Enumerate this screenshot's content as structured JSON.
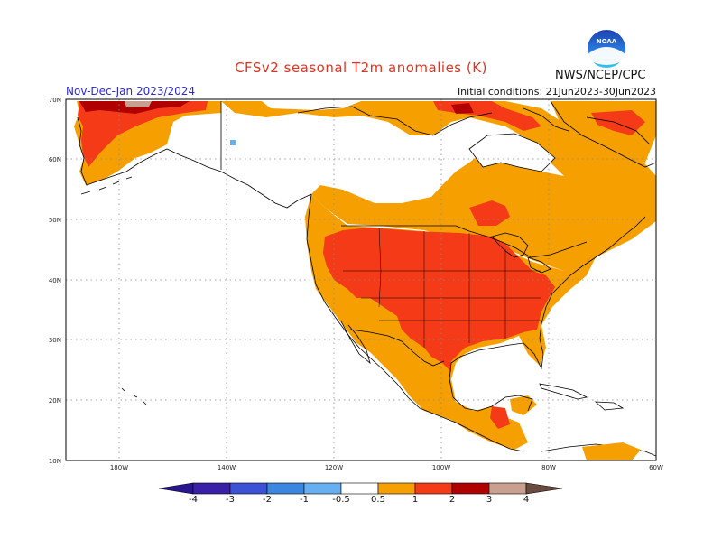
{
  "title": "CFSv2 seasonal T2m anomalies (K)",
  "season": "Nov-Dec-Jan 2023/2024",
  "initial_conditions": "Initial conditions: 21Jun2023-30Jun2023",
  "agency": "NWS/NCEP/CPC",
  "logo_text": "NOAA",
  "lat_labels": [
    "70N",
    "60N",
    "50N",
    "40N",
    "30N",
    "20N",
    "10N"
  ],
  "lon_labels": [
    "180W",
    "140W",
    "120W",
    "100W",
    "80W",
    "60W"
  ],
  "colorbar": {
    "labels": [
      "-4",
      "-3",
      "-2",
      "-1",
      "-0.5",
      "0.5",
      "1",
      "2",
      "3",
      "4"
    ],
    "colors": [
      "#3a1fa8",
      "#3b52d6",
      "#3b86e0",
      "#66b0f2",
      "#ffffff",
      "#f5a000",
      "#f53a18",
      "#b00000",
      "#c9a090",
      "#6b4a40"
    ]
  },
  "colors": {
    "land": "#ffffff",
    "ocean": "#ffffff",
    "anom_05": "#f5a000",
    "anom_1": "#f53a18",
    "anom_2": "#b00000",
    "anom_3": "#c9a090"
  }
}
